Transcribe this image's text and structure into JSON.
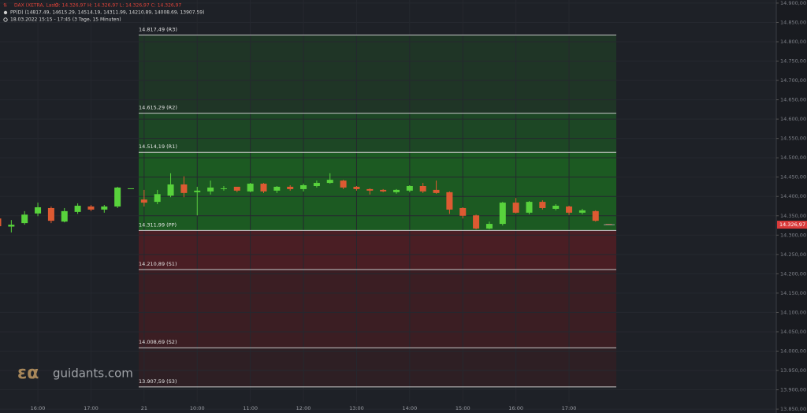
{
  "chart_data": {
    "type": "candlestick",
    "title": "DAX (XETRA, Last)",
    "ohlc_legend": "O: 14.326,97   H: 14.326,97   L: 14.326,97   C: 14.326,97",
    "indicator": "PP(D)   (14817.49, 14615.29, 14514.19, 14311.99, 14210.89, 14008.69, 13907.59)",
    "range_info": "18.03.2022 15:15 - 17:45    (3 Tage, 15 Minuten)",
    "logo": "guidants.com",
    "up_color": "#58d23c",
    "down_color": "#dd5a32",
    "grid": true,
    "ylim": [
      13840,
      14908
    ],
    "yticks": [
      {
        "value": 14900,
        "label": "14.900,00"
      },
      {
        "value": 14850,
        "label": "14.850,00"
      },
      {
        "value": 14800,
        "label": "14.800,00"
      },
      {
        "value": 14750,
        "label": "14.750,00"
      },
      {
        "value": 14700,
        "label": "14.700,00"
      },
      {
        "value": 14650,
        "label": "14.650,00"
      },
      {
        "value": 14600,
        "label": "14.600,00"
      },
      {
        "value": 14550,
        "label": "14.550,00"
      },
      {
        "value": 14500,
        "label": "14.500,00"
      },
      {
        "value": 14450,
        "label": "14.450,00"
      },
      {
        "value": 14400,
        "label": "14.400,00"
      },
      {
        "value": 14350,
        "label": "14.350,00"
      },
      {
        "value": 14300,
        "label": "14.300,00"
      },
      {
        "value": 14250,
        "label": "14.250,00"
      },
      {
        "value": 14200,
        "label": "14.200,00"
      },
      {
        "value": 14150,
        "label": "14.150,00"
      },
      {
        "value": 14100,
        "label": "14.100,00"
      },
      {
        "value": 14050,
        "label": "14.050,00"
      },
      {
        "value": 14000,
        "label": "14.000,00"
      },
      {
        "value": 13950,
        "label": "13.950,00"
      },
      {
        "value": 13900,
        "label": "13.900,00"
      },
      {
        "value": 13850,
        "label": "13.850,00"
      }
    ],
    "last_price": {
      "value": 14326.97,
      "label": "14.326,97"
    },
    "pivots": [
      {
        "value": 14817.49,
        "label": "14.817,49 (R3)"
      },
      {
        "value": 14615.29,
        "label": "14.615,29 (R2)"
      },
      {
        "value": 14514.19,
        "label": "14.514,19 (R1)"
      },
      {
        "value": 14311.99,
        "label": "14.311,99 (PP)"
      },
      {
        "value": 14210.89,
        "label": "14.210,89 (S1)"
      },
      {
        "value": 14008.69,
        "label": "14.008,69 (S2)"
      },
      {
        "value": 13907.59,
        "label": "13.907,59 (S3)"
      }
    ],
    "categories": [
      null,
      null,
      null,
      "16:00",
      null,
      null,
      null,
      "17:00",
      null,
      null,
      null,
      "21",
      null,
      null,
      null,
      "10:00",
      null,
      null,
      null,
      "11:00",
      null,
      null,
      null,
      "12:00",
      null,
      null,
      null,
      "13:00",
      null,
      null,
      null,
      "14:00",
      null,
      null,
      null,
      "15:00",
      null,
      null,
      null,
      "16:00",
      null,
      null,
      null,
      "17:00",
      null,
      null,
      null
    ],
    "open": [
      14343,
      14322,
      14331,
      14356,
      14370,
      14335,
      14360,
      14374,
      14366,
      14374,
      14421,
      14392,
      14386,
      14402,
      14431,
      14411,
      14413,
      14419,
      14425,
      14413,
      14433,
      14415,
      14425,
      14419,
      14427,
      14435,
      14441,
      14425,
      14419,
      14417,
      14411,
      14415,
      14427,
      14417,
      14411,
      14370,
      14351,
      14317,
      14329,
      14384,
      14358,
      14386,
      14368,
      14374,
      14358,
      14362,
      14329
    ],
    "high": [
      14347,
      14339,
      14362,
      14384,
      14374,
      14370,
      14382,
      14378,
      14378,
      14425,
      14421,
      14417,
      14417,
      14460,
      14452,
      14425,
      14441,
      14427,
      14425,
      14435,
      14435,
      14427,
      14429,
      14433,
      14441,
      14460,
      14443,
      14427,
      14421,
      14419,
      14419,
      14429,
      14435,
      14441,
      14413,
      14372,
      14353,
      14335,
      14386,
      14396,
      14388,
      14390,
      14380,
      14376,
      14368,
      14364,
      14329
    ],
    "low": [
      14317,
      14307,
      14327,
      14349,
      14331,
      14333,
      14355,
      14362,
      14358,
      14370,
      14421,
      14374,
      14380,
      14398,
      14398,
      14351,
      14405,
      14415,
      14411,
      14411,
      14409,
      14409,
      14415,
      14413,
      14423,
      14433,
      14419,
      14415,
      14405,
      14411,
      14407,
      14411,
      14409,
      14407,
      14355,
      14343,
      14315,
      14315,
      14325,
      14356,
      14354,
      14366,
      14364,
      14352,
      14354,
      14335,
      14327
    ],
    "close": [
      14323,
      14327,
      14353,
      14372,
      14337,
      14362,
      14376,
      14366,
      14374,
      14423,
      14421,
      14384,
      14406,
      14431,
      14409,
      14415,
      14423,
      14421,
      14415,
      14433,
      14413,
      14425,
      14419,
      14429,
      14435,
      14443,
      14423,
      14419,
      14415,
      14413,
      14417,
      14427,
      14413,
      14409,
      14366,
      14350,
      14317,
      14329,
      14384,
      14358,
      14386,
      14370,
      14376,
      14358,
      14364,
      14337,
      14327
    ]
  }
}
